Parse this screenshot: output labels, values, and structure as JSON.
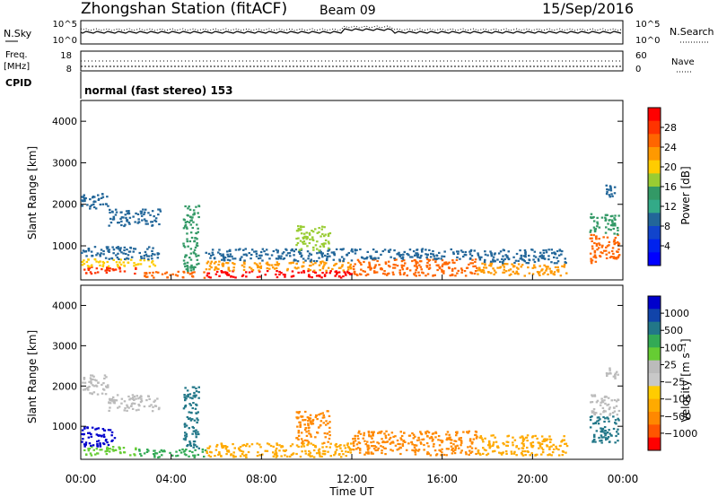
{
  "header": {
    "station": "Zhongshan Station (fitACF)",
    "beam": "Beam 09",
    "date": "15/Sep/2016"
  },
  "side_labels": {
    "nsky": "N.Sky",
    "nsearch": "N.Search",
    "freq": "Freq.",
    "freq_unit": "[MHz]",
    "nave": "Nave",
    "cpid": "CPID"
  },
  "noise_axis": {
    "ticks_left": [
      "10^5",
      "10^0"
    ],
    "ticks_right": [
      "10^5",
      "10^0"
    ]
  },
  "freq_axis": {
    "ticks_left": [
      "18",
      "8"
    ],
    "ticks_right": [
      "60",
      "0"
    ]
  },
  "cpid_text": "normal (fast stereo) 153",
  "range_axis": {
    "label": "Slant Range [km]",
    "ticks": [
      "4000",
      "3000",
      "2000",
      "1000"
    ],
    "tick_values": [
      4000,
      3000,
      2000,
      1000
    ],
    "range": [
      180,
      4500
    ]
  },
  "time_axis": {
    "label": "Time UT",
    "ticks": [
      "00:00",
      "04:00",
      "08:00",
      "12:00",
      "16:00",
      "20:00",
      "00:00"
    ],
    "tick_hours": [
      0,
      4,
      8,
      12,
      16,
      20,
      24
    ],
    "range": [
      0,
      24
    ]
  },
  "power_scale": {
    "label": "Power [dB]",
    "labels": [
      "28",
      "24",
      "20",
      "16",
      "12",
      "8",
      "4"
    ],
    "colors": [
      "#ff0000",
      "#ff3300",
      "#ff6600",
      "#ff9900",
      "#ffcc00",
      "#99cc33",
      "#339966",
      "#33aa88",
      "#226699",
      "#1144cc",
      "#0022ee",
      "#0000ff"
    ]
  },
  "velocity_scale": {
    "label": "Velocity [m s⁻¹]",
    "labels": [
      "1000",
      "500",
      "100",
      "25",
      "−25",
      "−100",
      "−500",
      "−1000"
    ],
    "colors": [
      "#0000cc",
      "#1144aa",
      "#227788",
      "#33aa55",
      "#66cc33",
      "#bbbbbb",
      "#c8c8c8",
      "#ffcc00",
      "#ffaa00",
      "#ff8800",
      "#ff5500",
      "#ff0000"
    ]
  },
  "chart_data": {
    "type": "heatmap",
    "x_range_hours": [
      0,
      24
    ],
    "y_range_km": [
      180,
      4500
    ],
    "power_regions": [
      {
        "t0": 0,
        "t1": 2.5,
        "r0": 350,
        "r1": 520,
        "c": "#ff3300"
      },
      {
        "t0": 0,
        "t1": 3.5,
        "r0": 520,
        "r1": 700,
        "c": "#ffcc00"
      },
      {
        "t0": 0,
        "t1": 3.5,
        "r0": 700,
        "r1": 1000,
        "c": "#226699"
      },
      {
        "t0": 0,
        "t1": 1.2,
        "r0": 1900,
        "r1": 2300,
        "c": "#226699"
      },
      {
        "t0": 1.2,
        "t1": 3.5,
        "r0": 1500,
        "r1": 1900,
        "c": "#226699"
      },
      {
        "t0": 2.5,
        "t1": 5.5,
        "r0": 250,
        "r1": 400,
        "c": "#ff6600"
      },
      {
        "t0": 4.5,
        "t1": 5.2,
        "r0": 400,
        "r1": 2000,
        "c": "#339966"
      },
      {
        "t0": 5.5,
        "t1": 12,
        "r0": 250,
        "r1": 420,
        "c": "#ff0000"
      },
      {
        "t0": 5.5,
        "t1": 12,
        "r0": 420,
        "r1": 650,
        "c": "#ff9900"
      },
      {
        "t0": 5.5,
        "t1": 12,
        "r0": 650,
        "r1": 950,
        "c": "#226699"
      },
      {
        "t0": 9.5,
        "t1": 11,
        "r0": 900,
        "r1": 1500,
        "c": "#99cc33"
      },
      {
        "t0": 12,
        "t1": 17.5,
        "r0": 300,
        "r1": 700,
        "c": "#ff6600"
      },
      {
        "t0": 12,
        "t1": 17.5,
        "r0": 700,
        "r1": 950,
        "c": "#226699"
      },
      {
        "t0": 17.5,
        "t1": 21.5,
        "r0": 300,
        "r1": 600,
        "c": "#ff9900"
      },
      {
        "t0": 17.5,
        "t1": 21.5,
        "r0": 600,
        "r1": 950,
        "c": "#226699"
      },
      {
        "t0": 22.5,
        "t1": 23.8,
        "r0": 600,
        "r1": 1300,
        "c": "#ff6600"
      },
      {
        "t0": 22.5,
        "t1": 23.8,
        "r0": 1300,
        "r1": 1800,
        "c": "#339966"
      },
      {
        "t0": 23.2,
        "t1": 23.8,
        "r0": 2200,
        "r1": 2500,
        "c": "#226699"
      }
    ],
    "velocity_regions": [
      {
        "t0": 0,
        "t1": 2.5,
        "r0": 300,
        "r1": 520,
        "c": "#66cc33"
      },
      {
        "t0": 0,
        "t1": 1.5,
        "r0": 520,
        "r1": 1000,
        "c": "#0000cc"
      },
      {
        "t0": 0,
        "t1": 1.2,
        "r0": 1800,
        "r1": 2300,
        "c": "#bbbbbb"
      },
      {
        "t0": 1.2,
        "t1": 3.5,
        "r0": 1400,
        "r1": 1800,
        "c": "#bbbbbb"
      },
      {
        "t0": 2.5,
        "t1": 5.5,
        "r0": 250,
        "r1": 450,
        "c": "#33aa55"
      },
      {
        "t0": 4.5,
        "t1": 5.2,
        "r0": 450,
        "r1": 2000,
        "c": "#227788"
      },
      {
        "t0": 5.5,
        "t1": 12,
        "r0": 250,
        "r1": 600,
        "c": "#ffaa00"
      },
      {
        "t0": 9.5,
        "t1": 11,
        "r0": 600,
        "r1": 1400,
        "c": "#ff8800"
      },
      {
        "t0": 12,
        "t1": 17.5,
        "r0": 300,
        "r1": 900,
        "c": "#ff8800"
      },
      {
        "t0": 17.5,
        "t1": 21.5,
        "r0": 300,
        "r1": 800,
        "c": "#ffaa00"
      },
      {
        "t0": 22.5,
        "t1": 23.8,
        "r0": 600,
        "r1": 1300,
        "c": "#227788"
      },
      {
        "t0": 22.5,
        "t1": 23.8,
        "r0": 1300,
        "r1": 1800,
        "c": "#bbbbbb"
      },
      {
        "t0": 23.2,
        "t1": 23.8,
        "r0": 2200,
        "r1": 2500,
        "c": "#bbbbbb"
      }
    ]
  }
}
